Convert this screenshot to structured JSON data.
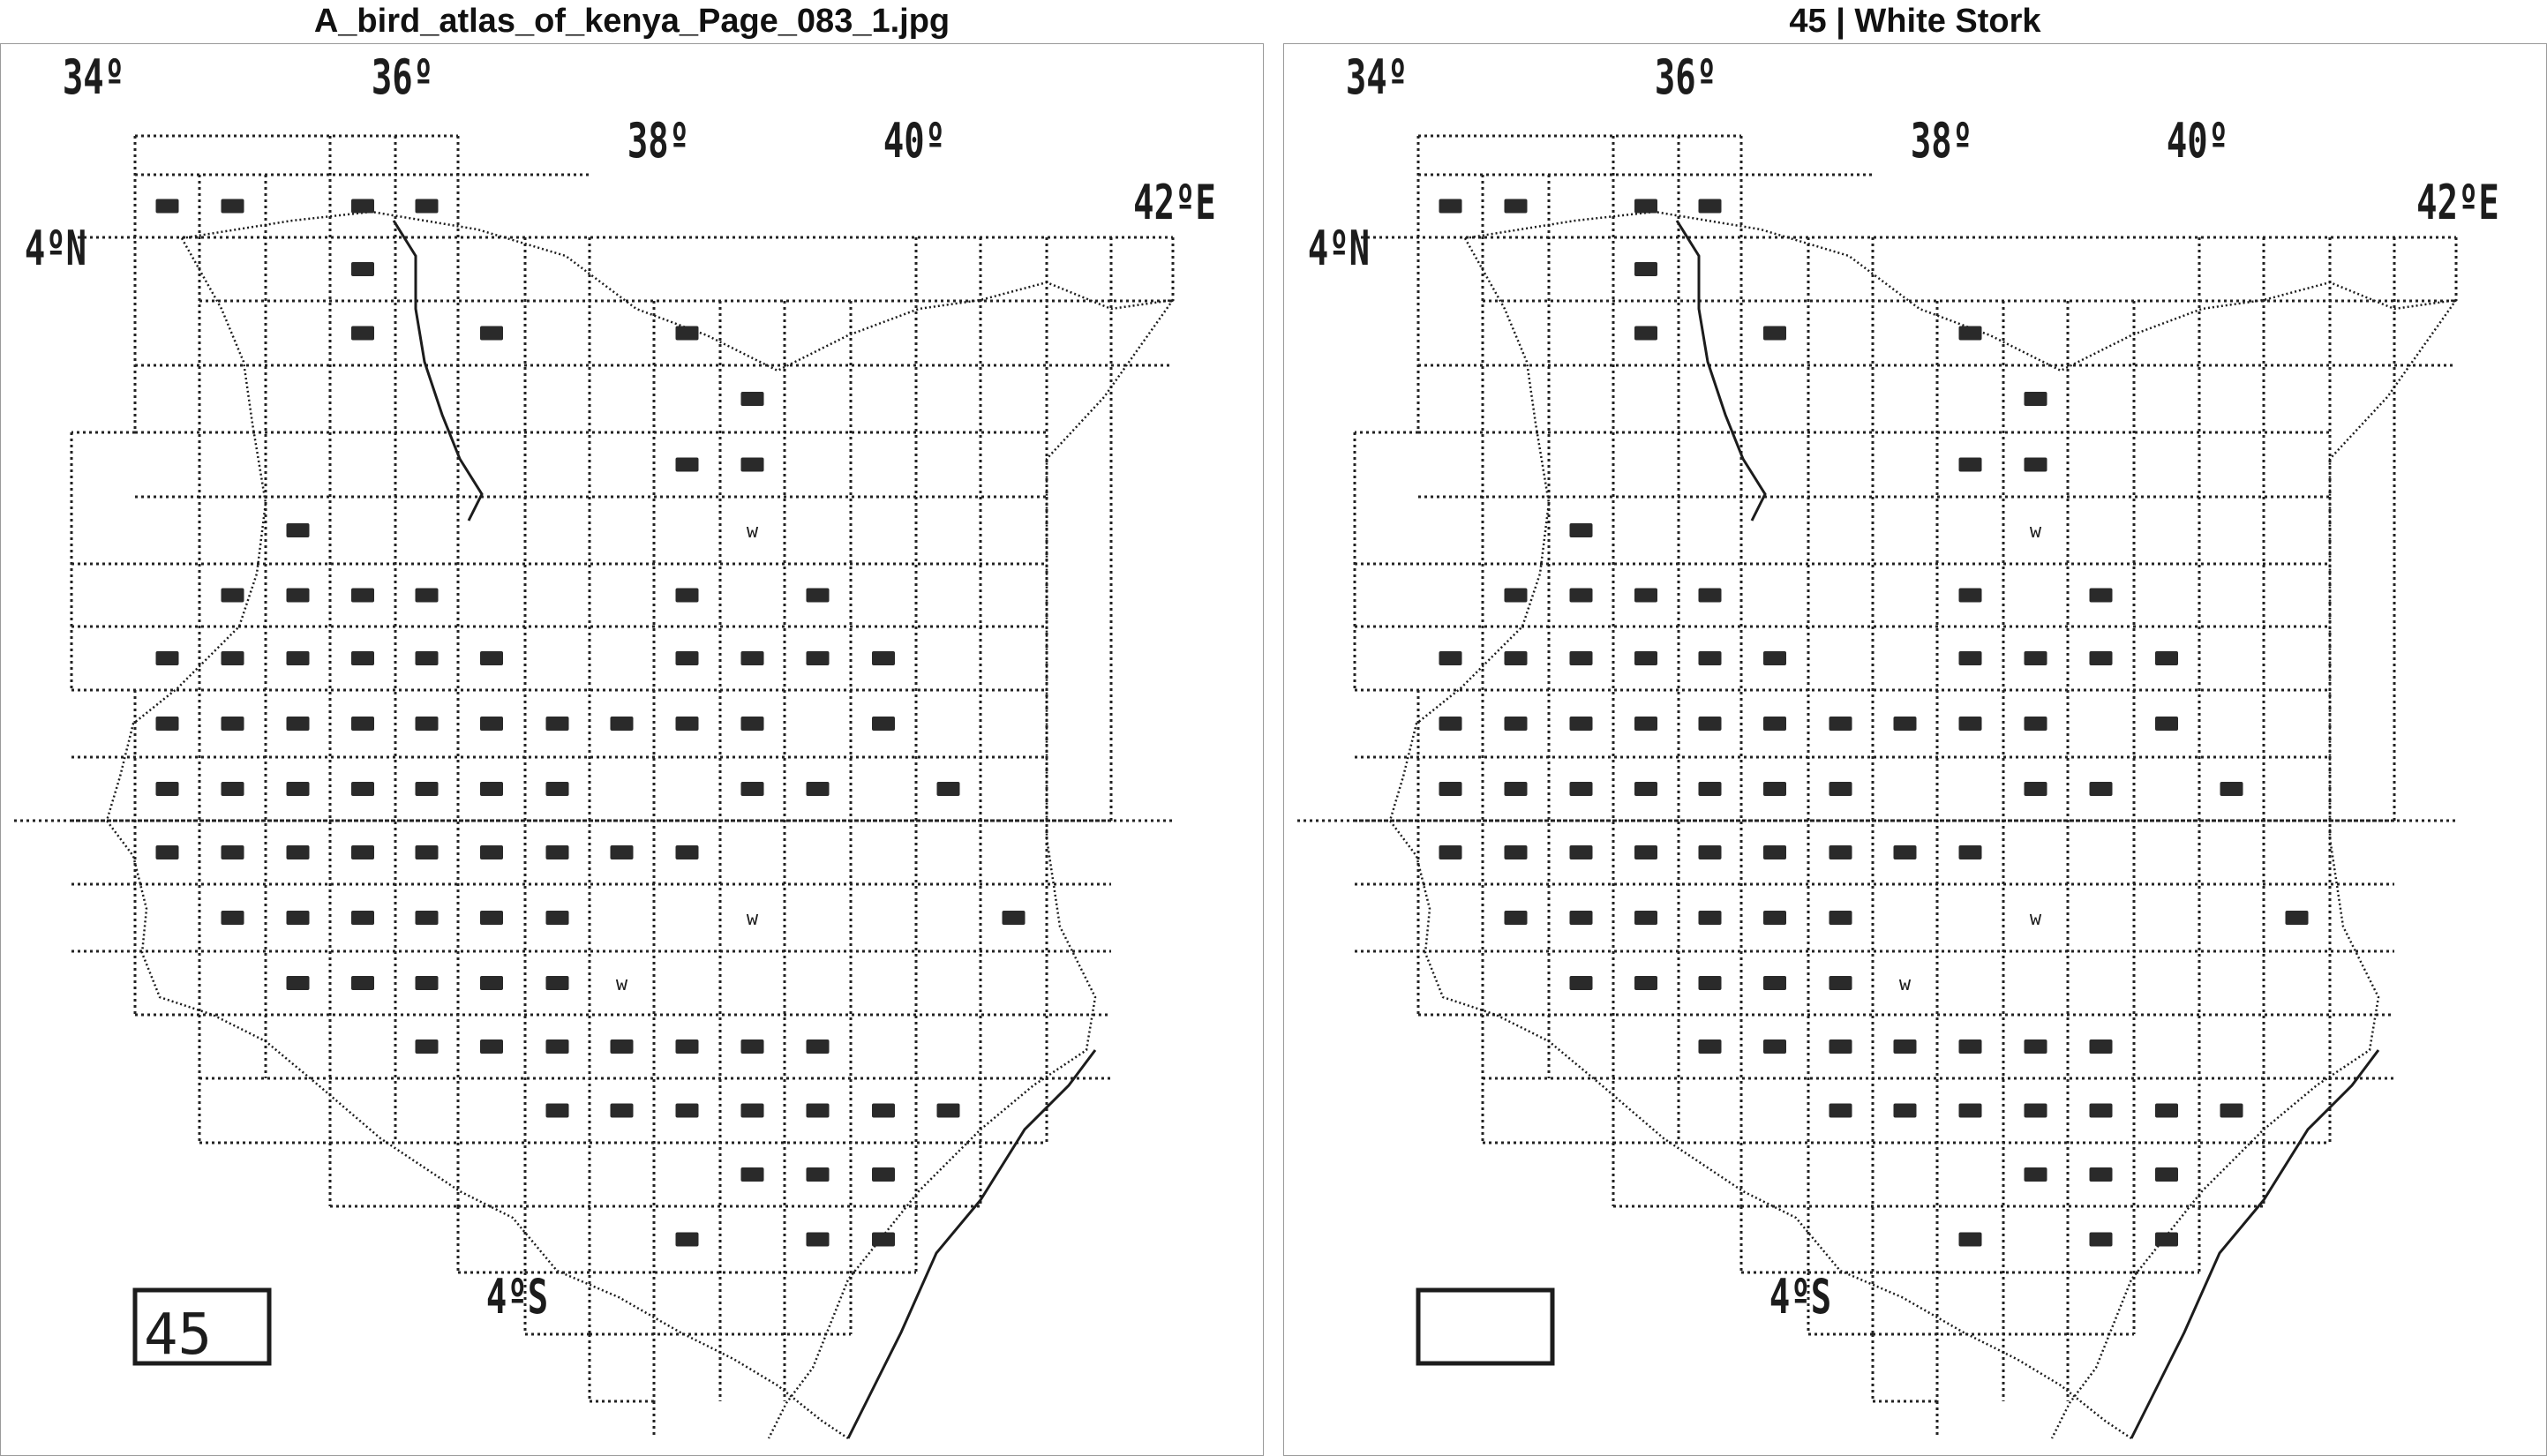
{
  "panels": {
    "left": {
      "title": "A_bird_atlas_of_kenya_Page_083_1.jpg",
      "species_number": "45"
    },
    "right": {
      "title": "45 | White Stork",
      "species_number": ""
    }
  },
  "map": {
    "grid_labels": {
      "lon_34": "34º",
      "lon_36": "36º",
      "lon_38": "38º",
      "lon_40": "40º",
      "lon_42": "42ºE",
      "lat_4n": "4ºN",
      "lat_4s": "4ºS"
    },
    "winter_marker": "w",
    "colors": {
      "ink": "#1c1c1c",
      "record_fill": "#2a2a2a",
      "grid": "#222222",
      "frame": "#9a9a9a"
    }
  }
}
